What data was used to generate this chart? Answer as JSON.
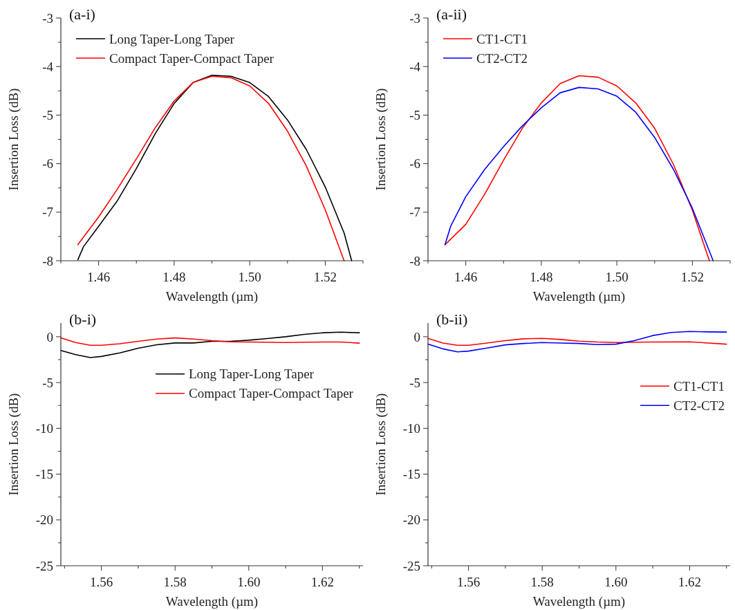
{
  "chart_data": [
    {
      "type": "line",
      "annotations": [
        "(a-i)"
      ],
      "xlabel": "Wavelength (µm)",
      "ylabel": "Insertion Loss (dB)",
      "legend": "top left",
      "xlim": [
        1.45,
        1.53
      ],
      "ylim": [
        -8,
        -3
      ],
      "xticks": [
        {
          "value": 1.45,
          "label": null
        },
        1.46,
        {
          "value": 1.47,
          "label": null
        },
        1.48,
        {
          "value": 1.49,
          "label": null
        },
        {
          "value": 1.5,
          "label": "1.50"
        },
        {
          "value": 1.51,
          "label": null
        },
        1.52,
        {
          "value": 1.53,
          "label": null
        }
      ],
      "yticks": [
        -8,
        {
          "value": -7.5,
          "label": null
        },
        -7,
        {
          "value": -6.5,
          "label": null
        },
        -6,
        {
          "value": -5.5,
          "label": null
        },
        -5,
        {
          "value": -4.5,
          "label": null
        },
        -4,
        {
          "value": -3.5,
          "label": null
        },
        -3
      ],
      "series": [
        {
          "name": "Long Taper-Long Taper",
          "color": "#000000",
          "x": [
            1.4545,
            1.456,
            1.46,
            1.465,
            1.47,
            1.475,
            1.48,
            1.485,
            1.49,
            1.495,
            1.5,
            1.505,
            1.51,
            1.515,
            1.52,
            1.525,
            1.527
          ],
          "values": [
            -7.98,
            -7.71,
            -7.29,
            -6.76,
            -6.1,
            -5.38,
            -4.76,
            -4.33,
            -4.18,
            -4.2,
            -4.33,
            -4.62,
            -5.1,
            -5.71,
            -6.48,
            -7.43,
            -8
          ]
        },
        {
          "name": "Compact Taper-Compact Taper",
          "color": "#ff0000",
          "x": [
            1.4545,
            1.46,
            1.465,
            1.47,
            1.475,
            1.48,
            1.485,
            1.49,
            1.495,
            1.5,
            1.505,
            1.51,
            1.515,
            1.52,
            1.525
          ],
          "values": [
            -7.67,
            -7.1,
            -6.52,
            -5.9,
            -5.26,
            -4.71,
            -4.33,
            -4.2,
            -4.23,
            -4.4,
            -4.76,
            -5.33,
            -6.05,
            -6.95,
            -8
          ]
        }
      ]
    },
    {
      "type": "line",
      "annotations": [
        "(a-ii)"
      ],
      "xlabel": "Wavelength (µm)",
      "ylabel": "Insertion Loss (dB)",
      "legend": "top left",
      "xlim": [
        1.45,
        1.53
      ],
      "ylim": [
        -8,
        -3
      ],
      "xticks": [
        {
          "value": 1.45,
          "label": null
        },
        1.46,
        {
          "value": 1.47,
          "label": null
        },
        1.48,
        {
          "value": 1.49,
          "label": null
        },
        {
          "value": 1.5,
          "label": "1.50"
        },
        {
          "value": 1.51,
          "label": null
        },
        1.52,
        {
          "value": 1.53,
          "label": null
        }
      ],
      "yticks": [
        -8,
        {
          "value": -7.5,
          "label": null
        },
        -7,
        {
          "value": -6.5,
          "label": null
        },
        -6,
        {
          "value": -5.5,
          "label": null
        },
        -5,
        {
          "value": -4.5,
          "label": null
        },
        -4,
        {
          "value": -3.5,
          "label": null
        },
        -3
      ],
      "series": [
        {
          "name": "CT1-CT1",
          "color": "#ff0000",
          "x": [
            1.4545,
            1.46,
            1.465,
            1.47,
            1.475,
            1.48,
            1.485,
            1.49,
            1.495,
            1.5,
            1.505,
            1.51,
            1.515,
            1.52,
            1.5245
          ],
          "values": [
            -7.67,
            -7.25,
            -6.63,
            -5.93,
            -5.27,
            -4.75,
            -4.35,
            -4.19,
            -4.22,
            -4.4,
            -4.75,
            -5.27,
            -6.02,
            -6.96,
            -8
          ]
        },
        {
          "name": "CT2-CT2",
          "color": "#0000ff",
          "x": [
            1.4545,
            1.456,
            1.46,
            1.465,
            1.47,
            1.475,
            1.48,
            1.485,
            1.49,
            1.495,
            1.5,
            1.505,
            1.51,
            1.515,
            1.52,
            1.5255
          ],
          "values": [
            -7.67,
            -7.29,
            -6.68,
            -6.12,
            -5.65,
            -5.22,
            -4.85,
            -4.54,
            -4.43,
            -4.46,
            -4.61,
            -4.94,
            -5.46,
            -6.12,
            -6.92,
            -8
          ]
        }
      ]
    },
    {
      "type": "line",
      "annotations": [
        "(b-i)"
      ],
      "xlabel": "Wavelength (µm)",
      "ylabel": "Insertion Loss (dB)",
      "legend": "top right",
      "xlim": [
        1.549,
        1.631
      ],
      "ylim": [
        -25,
        1.5
      ],
      "xticks": [
        {
          "value": 1.55,
          "label": null
        },
        1.56,
        {
          "value": 1.57,
          "label": null
        },
        1.58,
        {
          "value": 1.59,
          "label": null
        },
        {
          "value": 1.6,
          "label": "1.60"
        },
        {
          "value": 1.61,
          "label": null
        },
        1.62,
        {
          "value": 1.63,
          "label": null
        }
      ],
      "yticks": [
        -25,
        {
          "value": -22.5,
          "label": null
        },
        -20,
        {
          "value": -17.5,
          "label": null
        },
        -15,
        {
          "value": -12.5,
          "label": null
        },
        -10,
        {
          "value": -7.5,
          "label": null
        },
        -5,
        {
          "value": -2.5,
          "label": null
        },
        0
      ],
      "series": [
        {
          "name": "Long Taper-Long Taper",
          "color": "#000000",
          "x": [
            1.549,
            1.553,
            1.557,
            1.56,
            1.565,
            1.57,
            1.575,
            1.58,
            1.585,
            1.59,
            1.595,
            1.6,
            1.605,
            1.61,
            1.615,
            1.62,
            1.625,
            1.63
          ],
          "values": [
            -1.5,
            -1.95,
            -2.27,
            -2.15,
            -1.77,
            -1.26,
            -0.88,
            -0.68,
            -0.68,
            -0.5,
            -0.5,
            -0.38,
            -0.2,
            0,
            0.25,
            0.43,
            0.5,
            0.43
          ]
        },
        {
          "name": "Compact Taper-Compact Taper",
          "color": "#ff0000",
          "x": [
            1.549,
            1.553,
            1.557,
            1.56,
            1.565,
            1.57,
            1.575,
            1.58,
            1.585,
            1.59,
            1.595,
            1.6,
            1.61,
            1.62,
            1.625,
            1.63
          ],
          "values": [
            -0.13,
            -0.63,
            -0.93,
            -0.93,
            -0.76,
            -0.5,
            -0.25,
            -0.13,
            -0.25,
            -0.43,
            -0.56,
            -0.58,
            -0.63,
            -0.58,
            -0.58,
            -0.7
          ]
        }
      ]
    },
    {
      "type": "line",
      "annotations": [
        "(b-ii)"
      ],
      "xlabel": "Wavelength (µm)",
      "ylabel": "Insertion Loss (dB)",
      "legend": "right",
      "xlim": [
        1.549,
        1.631
      ],
      "ylim": [
        -25,
        1.5
      ],
      "xticks": [
        {
          "value": 1.55,
          "label": null
        },
        1.56,
        {
          "value": 1.57,
          "label": null
        },
        1.58,
        {
          "value": 1.59,
          "label": null
        },
        {
          "value": 1.6,
          "label": "1.60"
        },
        {
          "value": 1.61,
          "label": null
        },
        1.62,
        {
          "value": 1.63,
          "label": null
        }
      ],
      "yticks": [
        -25,
        {
          "value": -22.5,
          "label": null
        },
        -20,
        {
          "value": -17.5,
          "label": null
        },
        -15,
        {
          "value": -12.5,
          "label": null
        },
        -10,
        {
          "value": -7.5,
          "label": null
        },
        -5,
        {
          "value": -2.5,
          "label": null
        },
        0
      ],
      "series": [
        {
          "name": "CT1-CT1",
          "color": "#ff0000",
          "x": [
            1.549,
            1.553,
            1.557,
            1.56,
            1.565,
            1.57,
            1.575,
            1.58,
            1.585,
            1.59,
            1.595,
            1.6,
            1.61,
            1.62,
            1.63
          ],
          "values": [
            -0.18,
            -0.69,
            -0.94,
            -0.94,
            -0.69,
            -0.43,
            -0.23,
            -0.18,
            -0.3,
            -0.48,
            -0.58,
            -0.63,
            -0.58,
            -0.56,
            -0.81
          ]
        },
        {
          "name": "CT2-CT2",
          "color": "#0000ff",
          "x": [
            1.549,
            1.553,
            1.557,
            1.56,
            1.565,
            1.57,
            1.575,
            1.58,
            1.585,
            1.59,
            1.595,
            1.6,
            1.605,
            1.61,
            1.615,
            1.62,
            1.625,
            1.63
          ],
          "values": [
            -0.81,
            -1.32,
            -1.65,
            -1.57,
            -1.24,
            -0.89,
            -0.74,
            -0.63,
            -0.69,
            -0.74,
            -0.86,
            -0.81,
            -0.43,
            0.13,
            0.46,
            0.58,
            0.53,
            0.51
          ]
        }
      ]
    }
  ]
}
